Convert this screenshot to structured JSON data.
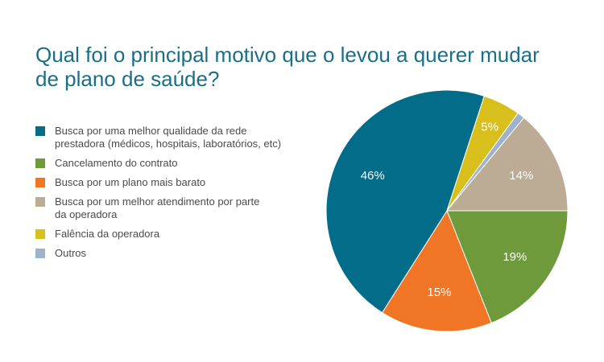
{
  "title": {
    "line1": "Qual foi o principal motivo que o levou a querer mudar",
    "line2": "de plano de saúde?"
  },
  "chart_data": {
    "type": "pie",
    "title": "Qual foi o principal motivo que o levou a querer mudar de plano de saúde?",
    "legend_position": "left",
    "slices": [
      {
        "label": "Busca por uma melhor qualidade da rede prestadora (médicos, hospitais, laboratórios, etc)",
        "label_lines": [
          "Busca por uma melhor qualidade da rede",
          "prestadora (médicos, hospitais, laboratórios, etc)"
        ],
        "value": 46,
        "value_label": "46%",
        "color": "#036d89"
      },
      {
        "label": "Cancelamento do contrato",
        "label_lines": [
          "Cancelamento do contrato"
        ],
        "value": 19,
        "value_label": "19%",
        "color": "#6e9a3c"
      },
      {
        "label": "Busca por um plano mais barato",
        "label_lines": [
          "Busca por um plano mais barato"
        ],
        "value": 15,
        "value_label": "15%",
        "color": "#f07625"
      },
      {
        "label": "Busca por um melhor atendimento por parte da operadora",
        "label_lines": [
          "Busca por um melhor atendimento por parte",
          "da operadora"
        ],
        "value": 14,
        "value_label": "14%",
        "color": "#bcab95"
      },
      {
        "label": "Falência da operadora",
        "label_lines": [
          "Falência da operadora"
        ],
        "value": 5,
        "value_label": "5%",
        "color": "#d9bf1b"
      },
      {
        "label": "Outros",
        "label_lines": [
          "Outros"
        ],
        "value": 1,
        "value_label": "",
        "color": "#9db3cd"
      }
    ]
  }
}
